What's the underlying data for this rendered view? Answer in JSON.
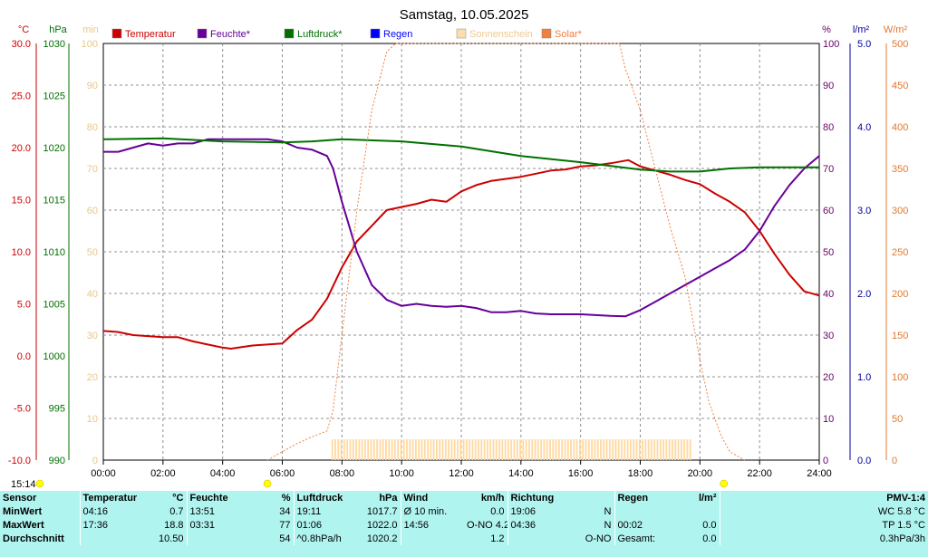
{
  "chart_data": {
    "type": "line",
    "title": "Samstag, 10.05.2025",
    "x_ticks": [
      "00:00",
      "02:00",
      "04:00",
      "06:00",
      "08:00",
      "10:00",
      "12:00",
      "14:00",
      "16:00",
      "18:00",
      "20:00",
      "22:00",
      "24:00"
    ],
    "xlim": [
      0,
      24
    ],
    "axes": {
      "temp": {
        "unit": "°C",
        "range": [
          -10,
          30
        ],
        "ticks": [
          "30.0",
          "25.0",
          "20.0",
          "15.0",
          "10.0",
          "5.0",
          "0.0",
          "-5.0",
          "-10.0"
        ],
        "color": "#cc0000"
      },
      "pressure": {
        "unit": "hPa",
        "range": [
          990,
          1030
        ],
        "ticks": [
          "1030",
          "1025",
          "1020",
          "1015",
          "1010",
          "1005",
          "1000",
          "995",
          "990"
        ],
        "color": "#007000"
      },
      "minutes": {
        "unit": "min",
        "range": [
          0,
          100
        ],
        "ticks": [
          "100",
          "90",
          "80",
          "70",
          "60",
          "50",
          "40",
          "30",
          "20",
          "10",
          "0"
        ],
        "color": "#e8c888"
      },
      "humidity": {
        "unit": "%",
        "range": [
          0,
          100
        ],
        "ticks": [
          "100",
          "90",
          "80",
          "70",
          "60",
          "50",
          "40",
          "30",
          "20",
          "10",
          "0"
        ],
        "color": "#660066"
      },
      "rain": {
        "unit": "l/m²",
        "range": [
          0,
          5
        ],
        "ticks": [
          "5.0",
          "4.0",
          "3.0",
          "2.0",
          "1.0",
          "0.0"
        ],
        "color": "#000099"
      },
      "solar": {
        "unit": "W/m²",
        "range": [
          0,
          500
        ],
        "ticks": [
          "500",
          "450",
          "400",
          "350",
          "300",
          "250",
          "200",
          "150",
          "100",
          "50",
          "0"
        ],
        "color": "#e07830"
      }
    },
    "legend": [
      {
        "label": "Temperatur",
        "color": "#cc0000"
      },
      {
        "label": "Feuchte*",
        "color": "#660099"
      },
      {
        "label": "Luftdruck*",
        "color": "#007000"
      },
      {
        "label": "Regen",
        "color": "#0000ff"
      },
      {
        "label": "Sonnenschein",
        "color": "#ffddaa"
      },
      {
        "label": "Solar*",
        "color": "#f08040"
      }
    ],
    "series": [
      {
        "key": "temp",
        "axis": "temp",
        "color": "#cc0000",
        "points": [
          [
            0,
            2.4
          ],
          [
            0.5,
            2.3
          ],
          [
            1,
            2.0
          ],
          [
            2,
            1.8
          ],
          [
            2.5,
            1.8
          ],
          [
            3,
            1.4
          ],
          [
            3.5,
            1.1
          ],
          [
            4,
            0.8
          ],
          [
            4.27,
            0.7
          ],
          [
            5,
            1.0
          ],
          [
            6,
            1.2
          ],
          [
            6.5,
            2.5
          ],
          [
            7,
            3.5
          ],
          [
            7.5,
            5.5
          ],
          [
            8,
            8.5
          ],
          [
            8.5,
            11
          ],
          [
            9,
            12.5
          ],
          [
            9.5,
            14.0
          ],
          [
            10,
            14.3
          ],
          [
            10.5,
            14.6
          ],
          [
            11,
            15.0
          ],
          [
            11.5,
            14.8
          ],
          [
            12,
            15.8
          ],
          [
            12.5,
            16.4
          ],
          [
            13,
            16.8
          ],
          [
            13.5,
            17.0
          ],
          [
            14,
            17.2
          ],
          [
            14.5,
            17.5
          ],
          [
            15,
            17.8
          ],
          [
            15.5,
            17.9
          ],
          [
            16,
            18.2
          ],
          [
            16.5,
            18.3
          ],
          [
            17,
            18.5
          ],
          [
            17.6,
            18.8
          ],
          [
            18,
            18.2
          ],
          [
            18.5,
            17.8
          ],
          [
            19,
            17.4
          ],
          [
            19.5,
            16.9
          ],
          [
            20,
            16.5
          ],
          [
            20.5,
            15.6
          ],
          [
            21,
            14.8
          ],
          [
            21.5,
            13.8
          ],
          [
            22,
            12.0
          ],
          [
            22.5,
            9.8
          ],
          [
            23,
            7.8
          ],
          [
            23.5,
            6.2
          ],
          [
            24,
            5.8
          ]
        ]
      },
      {
        "key": "humidity",
        "axis": "humidity",
        "color": "#660099",
        "points": [
          [
            0,
            74
          ],
          [
            0.5,
            74
          ],
          [
            1,
            75
          ],
          [
            1.5,
            76
          ],
          [
            2,
            75.5
          ],
          [
            2.5,
            76
          ],
          [
            3,
            76
          ],
          [
            3.5,
            77
          ],
          [
            4,
            77
          ],
          [
            5,
            77
          ],
          [
            5.5,
            77
          ],
          [
            6,
            76.5
          ],
          [
            6.5,
            75
          ],
          [
            7,
            74.5
          ],
          [
            7.5,
            73
          ],
          [
            7.7,
            70
          ],
          [
            8,
            62
          ],
          [
            8.5,
            50
          ],
          [
            9,
            42
          ],
          [
            9.5,
            38.5
          ],
          [
            10,
            37
          ],
          [
            10.5,
            37.5
          ],
          [
            11,
            37
          ],
          [
            11.5,
            36.8
          ],
          [
            12,
            37
          ],
          [
            12.5,
            36.5
          ],
          [
            13,
            35.5
          ],
          [
            13.5,
            35.5
          ],
          [
            14,
            35.8
          ],
          [
            14.5,
            35.2
          ],
          [
            15,
            35
          ],
          [
            15.5,
            35
          ],
          [
            16,
            35
          ],
          [
            16.5,
            34.8
          ],
          [
            17,
            34.6
          ],
          [
            17.5,
            34.5
          ],
          [
            18,
            36
          ],
          [
            18.5,
            38
          ],
          [
            19,
            40
          ],
          [
            19.5,
            42
          ],
          [
            20,
            44
          ],
          [
            20.5,
            46
          ],
          [
            21,
            48
          ],
          [
            21.5,
            50.5
          ],
          [
            22,
            55
          ],
          [
            22.5,
            61
          ],
          [
            23,
            66
          ],
          [
            23.5,
            70
          ],
          [
            24,
            73
          ]
        ]
      },
      {
        "key": "pressure",
        "axis": "pressure",
        "color": "#007000",
        "points": [
          [
            0,
            1020.8
          ],
          [
            2,
            1020.9
          ],
          [
            4,
            1020.6
          ],
          [
            6,
            1020.5
          ],
          [
            7,
            1020.6
          ],
          [
            8,
            1020.8
          ],
          [
            10,
            1020.6
          ],
          [
            12,
            1020.1
          ],
          [
            14,
            1019.2
          ],
          [
            16,
            1018.6
          ],
          [
            18,
            1017.9
          ],
          [
            19,
            1017.7
          ],
          [
            20,
            1017.7
          ],
          [
            21,
            1018.0
          ],
          [
            22,
            1018.1
          ],
          [
            24,
            1018.1
          ]
        ]
      },
      {
        "key": "solar",
        "axis": "solar",
        "color": "#f08040",
        "dashed": true,
        "points": [
          [
            5.5,
            0
          ],
          [
            6,
            10
          ],
          [
            6.5,
            20
          ],
          [
            7,
            28
          ],
          [
            7.5,
            35
          ],
          [
            7.7,
            60
          ],
          [
            8,
            150
          ],
          [
            8.5,
            300
          ],
          [
            9,
            420
          ],
          [
            9.5,
            490
          ],
          [
            9.8,
            500
          ],
          [
            17.3,
            500
          ],
          [
            17.5,
            470
          ],
          [
            18,
            420
          ],
          [
            18.5,
            350
          ],
          [
            19,
            280
          ],
          [
            19.5,
            220
          ],
          [
            20,
            120
          ],
          [
            20.3,
            70
          ],
          [
            20.7,
            30
          ],
          [
            21,
            10
          ],
          [
            21.5,
            0
          ]
        ]
      }
    ],
    "sunshine": {
      "axis": "minutes",
      "color": "#ffd9a0",
      "start": 7.65,
      "end": 19.7,
      "value": 5
    },
    "markers": [
      {
        "label": "15:14",
        "x": 0.2,
        "color": "#ffff00"
      },
      {
        "x": 5.5,
        "color": "#ffff00"
      },
      {
        "x": 20.8,
        "color": "#ffff00"
      }
    ]
  },
  "stats": {
    "headers": {
      "sensor": "Sensor",
      "temp": "Temperatur",
      "temp_unit": "°C",
      "hum": "Feuchte",
      "hum_unit": "%",
      "press": "Luftdruck",
      "press_unit": "hPa",
      "wind": "Wind",
      "wind_unit": "km/h",
      "dir": "Richtung",
      "rain": "Regen",
      "rain_unit": "l/m²",
      "pmv": "PMV-1:4"
    },
    "rows": [
      {
        "label": "MinWert",
        "temp_time": "04:16",
        "temp": "0.7",
        "hum_time": "13:51",
        "hum": "34",
        "press_time": "19:11",
        "press": "1017.7",
        "wind_time": "Ø 10 min.",
        "wind": "0.0",
        "dir_time": "19:06",
        "dir": "N",
        "rain_time": "",
        "rain": "",
        "pmv": "WC 5.8 °C"
      },
      {
        "label": "MaxWert",
        "temp_time": "17:36",
        "temp": "18.8",
        "hum_time": "03:31",
        "hum": "77",
        "press_time": "01:06",
        "press": "1022.0",
        "wind_time": "14:56",
        "wind": "O-NO 4.2",
        "dir_time": "04:36",
        "dir": "N",
        "rain_time": "00:02",
        "rain": "0.0",
        "pmv": "TP 1.5 °C"
      },
      {
        "label": "Durchschnitt",
        "temp_time": "",
        "temp": "10.50",
        "hum_time": "",
        "hum": "54",
        "press_time": "^0.8hPa/h",
        "press": "1020.2",
        "wind_time": "",
        "wind": "1.2",
        "dir_time": "",
        "dir": "O-NO",
        "rain_time": "Gesamt:",
        "rain": "0.0",
        "pmv": "0.3hPa/3h"
      }
    ]
  }
}
